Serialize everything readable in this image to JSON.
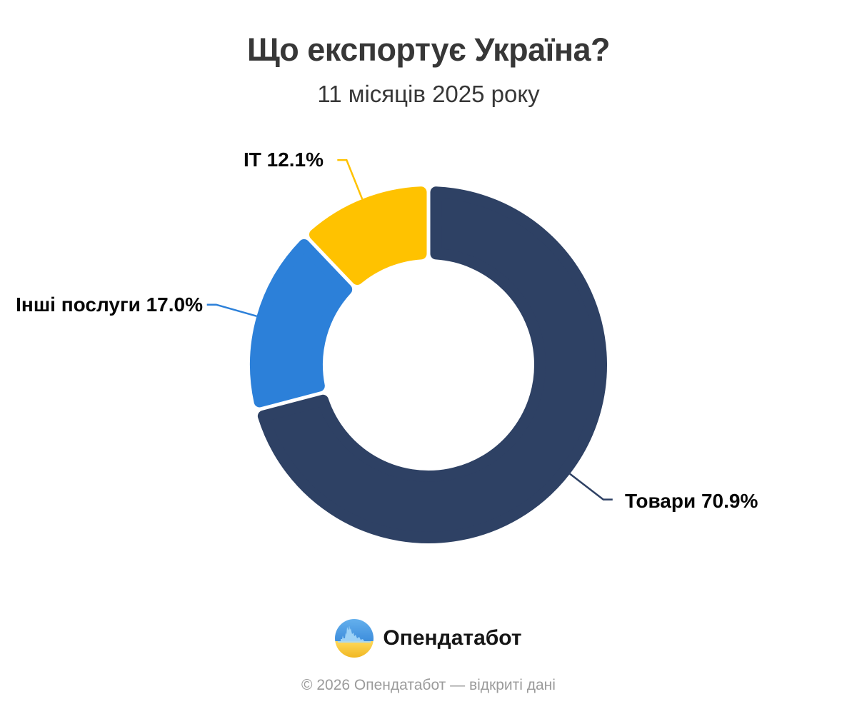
{
  "header": {
    "title": "Що експортує Україна?",
    "subtitle": "11 місяців 2025 року"
  },
  "chart_data": {
    "type": "pie",
    "subtype": "donut",
    "title": "Що експортує Україна?",
    "subtitle": "11 місяців 2025 року",
    "unit": "%",
    "start_angle_deg": 0,
    "direction": "clockwise",
    "slices": [
      {
        "name": "Товари",
        "value": 70.9,
        "display": "Товари 70.9%",
        "color": "#2E4164"
      },
      {
        "name": "Інші послуги",
        "value": 17.0,
        "display": "Інші послуги 17.0%",
        "color": "#2C80D9"
      },
      {
        "name": "IT",
        "value": 12.1,
        "display": "IT 12.1%",
        "color": "#FFC200"
      }
    ]
  },
  "footer": {
    "logo_text": "Опендатабот",
    "copyright": "© 2026 Опендатабот — відкриті дані"
  }
}
